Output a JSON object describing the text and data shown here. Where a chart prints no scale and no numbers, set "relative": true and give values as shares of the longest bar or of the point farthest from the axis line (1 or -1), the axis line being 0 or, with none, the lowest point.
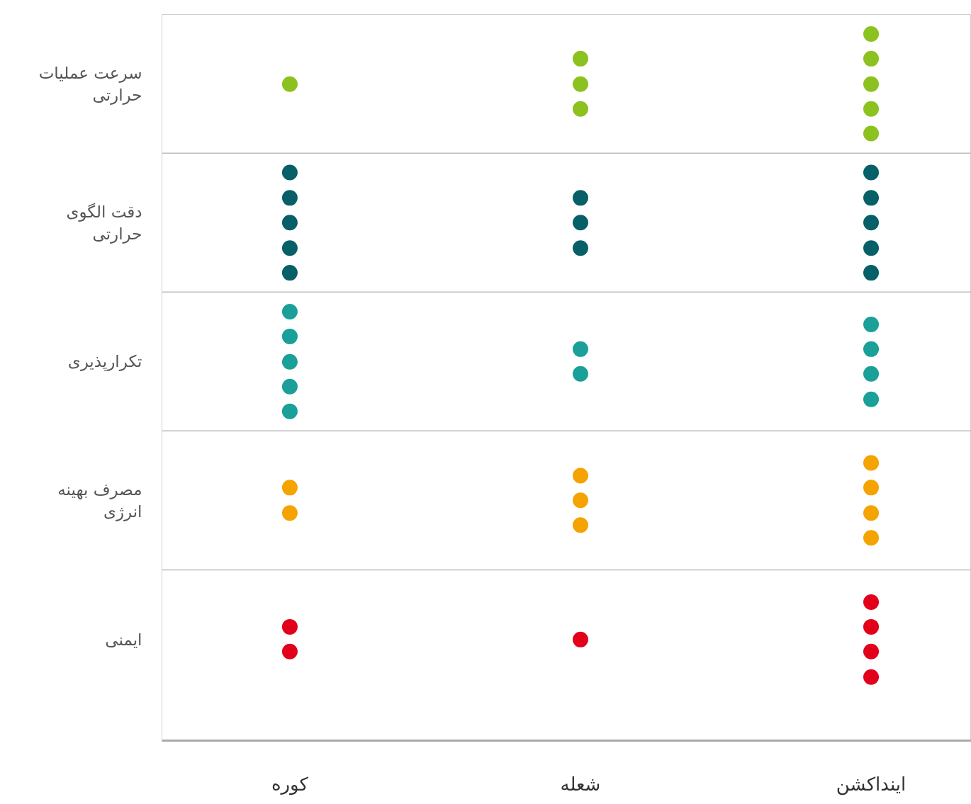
{
  "chart_data": {
    "type": "scatter",
    "categories": [
      "کوره",
      "شعله",
      "اینداکشن"
    ],
    "relative": true,
    "series": [
      {
        "color": "#8cc21f",
        "x": [
          "کوره",
          "شعله",
          "شعله",
          "شعله",
          "اینداکشن",
          "اینداکشن",
          "اینداکشن",
          "اینداکشن",
          "اینداکشن"
        ],
        "values": [
          0.929,
          0.894,
          0.929,
          0.965,
          0.859,
          0.894,
          0.929,
          0.965,
          1
        ]
      },
      {
        "color": "#075f67",
        "x": [
          "کوره",
          "کوره",
          "کوره",
          "کوره",
          "کوره",
          "شعله",
          "شعله",
          "شعله",
          "اینداکشن",
          "اینداکشن",
          "اینداکشن",
          "اینداکشن",
          "اینداکشن"
        ],
        "values": [
          0.662,
          0.697,
          0.733,
          0.768,
          0.804,
          0.697,
          0.733,
          0.768,
          0.662,
          0.697,
          0.733,
          0.768,
          0.804
        ]
      },
      {
        "color": "#1a9f99",
        "x": [
          "کوره",
          "کوره",
          "کوره",
          "کوره",
          "کوره",
          "شعله",
          "شعله",
          "اینداکشن",
          "اینداکشن",
          "اینداکشن",
          "اینداکشن"
        ],
        "values": [
          0.466,
          0.501,
          0.536,
          0.572,
          0.607,
          0.519,
          0.554,
          0.483,
          0.519,
          0.554,
          0.589
        ]
      },
      {
        "color": "#f4a300",
        "x": [
          "کوره",
          "کوره",
          "شعله",
          "شعله",
          "شعله",
          "اینداکشن",
          "اینداکشن",
          "اینداکشن",
          "اینداکشن"
        ],
        "values": [
          0.322,
          0.358,
          0.305,
          0.34,
          0.375,
          0.287,
          0.322,
          0.358,
          0.393
        ]
      },
      {
        "color": "#e2001a",
        "x": [
          "کوره",
          "کوره",
          "شعله",
          "اینداکشن",
          "اینداکشن",
          "اینداکشن",
          "اینداکشن"
        ],
        "values": [
          0.126,
          0.161,
          0.143,
          0.09,
          0.126,
          0.161,
          0.196
        ]
      }
    ],
    "annotations": [
      "سرعت عملیات\nحرارتی",
      "دقت الگوی\nحرارتی",
      "تکرارپذیری",
      "مصرف بهینه\nانرژی",
      "ایمنی"
    ],
    "marker": "circle"
  }
}
